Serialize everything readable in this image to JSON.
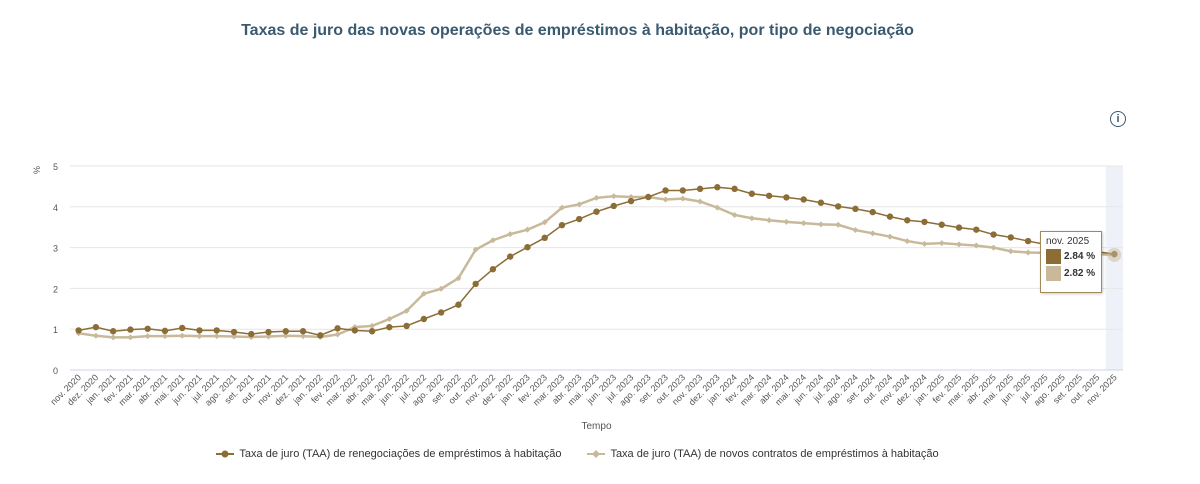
{
  "chart_data": {
    "type": "line",
    "title": "Taxas de juro das novas operações de empréstimos à habitação, por tipo de negociação",
    "xlabel": "Tempo",
    "ylabel": "%",
    "ylim": [
      0,
      5
    ],
    "yticks": [
      "0",
      "1",
      "2",
      "3",
      "4",
      "5"
    ],
    "grid": true,
    "legend_position": "bottom",
    "categories": [
      "nov. 2020",
      "dez. 2020",
      "jan. 2021",
      "fev. 2021",
      "mar. 2021",
      "abr. 2021",
      "mai. 2021",
      "jun. 2021",
      "jul. 2021",
      "ago. 2021",
      "set. 2021",
      "out. 2021",
      "nov. 2021",
      "dez. 2021",
      "jan. 2022",
      "fev. 2022",
      "mar. 2022",
      "abr. 2022",
      "mai. 2022",
      "jun. 2022",
      "jul. 2022",
      "ago. 2022",
      "set. 2022",
      "out. 2022",
      "nov. 2022",
      "dez. 2022",
      "jan. 2023",
      "fev. 2023",
      "mar. 2023",
      "abr. 2023",
      "mai. 2023",
      "jun. 2023",
      "jul. 2023",
      "ago. 2023",
      "set. 2023",
      "out. 2023",
      "nov. 2023",
      "dez. 2023",
      "jan. 2024",
      "fev. 2024",
      "mar. 2024",
      "abr. 2024",
      "mai. 2024",
      "jun. 2024",
      "jul. 2024",
      "ago. 2024",
      "set. 2024",
      "out. 2024",
      "nov. 2024",
      "dez. 2024",
      "jan. 2025",
      "fev. 2025",
      "mar. 2025",
      "abr. 2025",
      "mai. 2025",
      "jun. 2025",
      "jul. 2025",
      "ago. 2025",
      "set. 2025",
      "out. 2025",
      "nov. 2025"
    ],
    "series": [
      {
        "name": "Taxa de juro (TAA) de renegociações de empréstimos à habitação",
        "color": "#8b6d35",
        "marker": "circle",
        "values": [
          0.97,
          1.05,
          0.95,
          0.99,
          1.01,
          0.96,
          1.03,
          0.97,
          0.97,
          0.93,
          0.88,
          0.93,
          0.95,
          0.95,
          0.85,
          1.02,
          0.97,
          0.95,
          1.05,
          1.08,
          1.25,
          1.41,
          1.6,
          2.11,
          2.47,
          2.78,
          3.01,
          3.24,
          3.55,
          3.7,
          3.88,
          4.02,
          4.14,
          4.24,
          4.4,
          4.4,
          4.44,
          4.48,
          4.44,
          4.32,
          4.27,
          4.23,
          4.18,
          4.1,
          4.01,
          3.95,
          3.87,
          3.76,
          3.67,
          3.63,
          3.56,
          3.49,
          3.44,
          3.32,
          3.25,
          3.16,
          3.08,
          3.0,
          2.95,
          2.9,
          2.84
        ]
      },
      {
        "name": "Taxa de juro (TAA) de novos contratos de empréstimos à habitação",
        "color": "#c8b99a",
        "marker": "diamond",
        "values": [
          0.9,
          0.84,
          0.8,
          0.8,
          0.83,
          0.83,
          0.84,
          0.83,
          0.83,
          0.82,
          0.81,
          0.82,
          0.84,
          0.83,
          0.81,
          0.87,
          1.05,
          1.08,
          1.25,
          1.45,
          1.87,
          1.99,
          2.25,
          2.95,
          3.18,
          3.33,
          3.44,
          3.62,
          3.98,
          4.06,
          4.22,
          4.26,
          4.24,
          4.24,
          4.18,
          4.2,
          4.13,
          3.98,
          3.8,
          3.72,
          3.67,
          3.63,
          3.6,
          3.57,
          3.56,
          3.43,
          3.35,
          3.27,
          3.16,
          3.09,
          3.11,
          3.08,
          3.05,
          3.0,
          2.91,
          2.88,
          2.87,
          2.86,
          2.85,
          2.84,
          2.82
        ]
      }
    ],
    "tooltip": {
      "label": "nov. 2025",
      "values": [
        "2.84 %",
        "2.82 %"
      ]
    }
  },
  "info_icon": "info-circle-icon"
}
